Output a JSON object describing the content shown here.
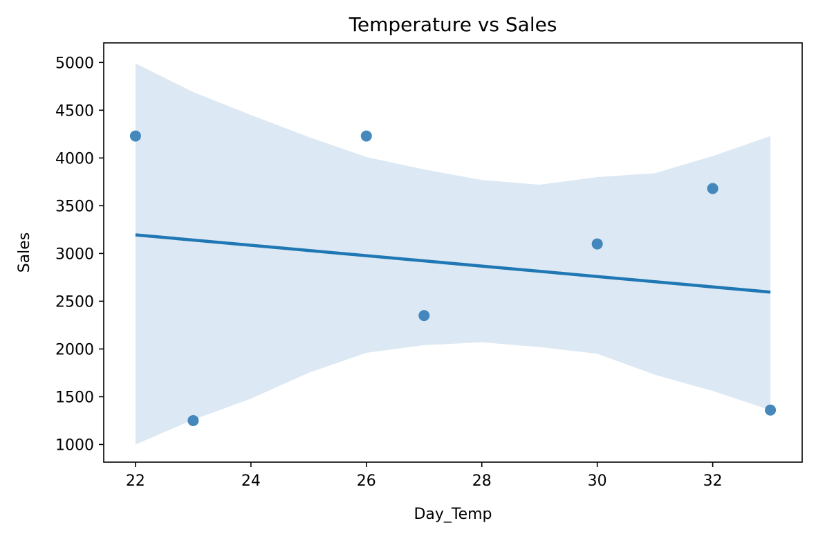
{
  "chart_data": {
    "type": "scatter",
    "title": "Temperature vs Sales",
    "xlabel": "Day_Temp",
    "ylabel": "Sales",
    "xlim": [
      21.45,
      33.55
    ],
    "ylim": [
      815,
      5205
    ],
    "xticks": [
      22,
      24,
      26,
      28,
      30,
      32
    ],
    "yticks": [
      1000,
      1500,
      2000,
      2500,
      3000,
      3500,
      4000,
      4500,
      5000
    ],
    "grid": false,
    "points": [
      {
        "x": 22,
        "y": 4230
      },
      {
        "x": 23,
        "y": 1250
      },
      {
        "x": 26,
        "y": 4230
      },
      {
        "x": 27,
        "y": 2350
      },
      {
        "x": 30,
        "y": 3100
      },
      {
        "x": 32,
        "y": 3680
      },
      {
        "x": 33,
        "y": 1360
      }
    ],
    "regression_line": {
      "x": [
        22,
        33
      ],
      "y": [
        3195,
        2595
      ]
    },
    "confidence_band": {
      "x": [
        22,
        23,
        24,
        25,
        26,
        27,
        28,
        29,
        30,
        31,
        32,
        33
      ],
      "upper": [
        4990,
        4690,
        4450,
        4220,
        4010,
        3880,
        3770,
        3720,
        3800,
        3840,
        4020,
        4230
      ],
      "lower": [
        1000,
        1260,
        1480,
        1750,
        1960,
        2040,
        2070,
        2020,
        1950,
        1730,
        1560,
        1360
      ]
    },
    "colors": {
      "point": "#3b82b8",
      "line": "#1f77b4",
      "band": "#dce8f3"
    }
  }
}
